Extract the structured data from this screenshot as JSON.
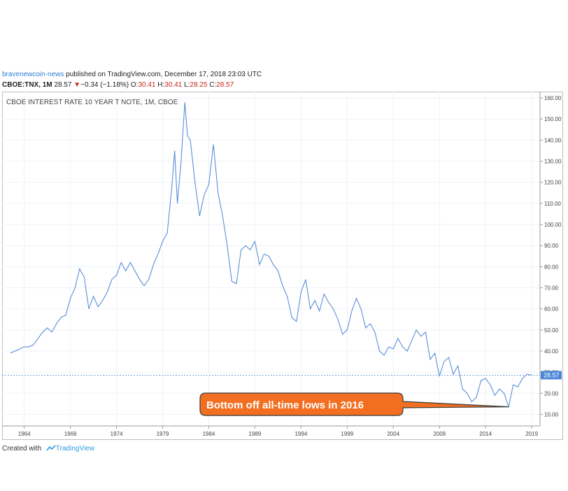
{
  "header": {
    "author": "bravenewcoin-news",
    "published_text": " published on TradingView.com, December 17, 2018 23:03 UTC",
    "symbol": "CBOE:TNX, 1M",
    "last": "28.57",
    "change": "−0.34 (−1.18%)",
    "open_label": "O:",
    "open": "30.41",
    "high_label": "H:",
    "high": "30.41",
    "low_label": "L:",
    "low": "28.25",
    "close_label": "C:",
    "close": "28.57"
  },
  "footer": {
    "created_with": "Created with",
    "brand": "TradingView"
  },
  "colors": {
    "line": "#5b8fd6",
    "price_tag": "#4a86d8",
    "annotation": "#f26f21",
    "down": "#c8281e"
  },
  "chart_data": {
    "type": "line",
    "title": "CBOE INTEREST RATE 10 YEAR T NOTE, 1M, CBOE",
    "xlabel": "",
    "ylabel": "",
    "x_ticks": [
      "1964",
      "1969",
      "1974",
      "1979",
      "1984",
      "1989",
      "1994",
      "1999",
      "2004",
      "2009",
      "2014",
      "2019"
    ],
    "y_ticks": [
      "10.00",
      "20.00",
      "30.00",
      "40.00",
      "50.00",
      "60.00",
      "70.00",
      "80.00",
      "90.00",
      "100.00",
      "110.00",
      "120.00",
      "130.00",
      "140.00",
      "150.00",
      "160.00"
    ],
    "xlim": [
      1961.6,
      2019.9
    ],
    "ylim": [
      4.5,
      163
    ],
    "y_axis_side": "right",
    "grid": true,
    "last_price_label": "28.57",
    "last_price": 28.57,
    "annotation": {
      "text": "Bottom off all-time lows in 2016",
      "target": [
        2016.5,
        13.6
      ]
    },
    "series": [
      {
        "x": [
          1962.5,
          1963.0,
          1963.5,
          1964.0,
          1964.5,
          1965.0,
          1965.5,
          1966.0,
          1966.5,
          1967.0,
          1967.5,
          1968.0,
          1968.5,
          1969.0,
          1969.5,
          1970.0,
          1970.5,
          1971.0,
          1971.5,
          1972.0,
          1972.5,
          1973.0,
          1973.5,
          1974.0,
          1974.5,
          1975.0,
          1975.5,
          1976.0,
          1976.5,
          1977.0,
          1977.5,
          1978.0,
          1978.5,
          1979.0,
          1979.5,
          1980.0,
          1980.3,
          1980.6,
          1981.0,
          1981.4,
          1981.7,
          1982.0,
          1982.5,
          1983.0,
          1983.5,
          1984.0,
          1984.5,
          1985.0,
          1985.5,
          1986.0,
          1986.5,
          1987.0,
          1987.5,
          1988.0,
          1988.5,
          1989.0,
          1989.5,
          1990.0,
          1990.5,
          1991.0,
          1991.5,
          1992.0,
          1992.5,
          1993.0,
          1993.5,
          1994.0,
          1994.5,
          1995.0,
          1995.5,
          1996.0,
          1996.5,
          1997.0,
          1997.5,
          1998.0,
          1998.5,
          1999.0,
          1999.5,
          2000.0,
          2000.5,
          2001.0,
          2001.5,
          2002.0,
          2002.5,
          2003.0,
          2003.5,
          2004.0,
          2004.5,
          2005.0,
          2005.5,
          2006.0,
          2006.5,
          2007.0,
          2007.5,
          2008.0,
          2008.5,
          2009.0,
          2009.5,
          2010.0,
          2010.5,
          2011.0,
          2011.5,
          2012.0,
          2012.5,
          2013.0,
          2013.5,
          2014.0,
          2014.5,
          2015.0,
          2015.5,
          2016.0,
          2016.5,
          2017.0,
          2017.5,
          2018.0,
          2018.5,
          2018.96
        ],
        "y": [
          39.0,
          40.0,
          41.0,
          42.0,
          42.0,
          43.0,
          46.0,
          49.0,
          51.0,
          49.0,
          53.0,
          56.0,
          57.0,
          65.0,
          70.0,
          79.0,
          75.0,
          60.0,
          66.0,
          61.0,
          64.0,
          68.0,
          74.0,
          76.0,
          82.0,
          78.0,
          82.0,
          78.0,
          74.0,
          71.0,
          74.0,
          81.0,
          86.0,
          92.0,
          96.0,
          118.0,
          135.0,
          110.0,
          130.0,
          158.0,
          142.0,
          140.0,
          120.0,
          104.0,
          114.0,
          119.0,
          138.0,
          115.0,
          104.0,
          90.0,
          73.0,
          72.0,
          88.0,
          90.0,
          88.0,
          92.0,
          81.0,
          86.0,
          85.0,
          81.0,
          78.0,
          71.0,
          66.0,
          56.0,
          54.0,
          68.0,
          74.0,
          60.0,
          64.0,
          59.0,
          67.0,
          63.0,
          60.0,
          55.0,
          48.0,
          50.0,
          59.0,
          65.0,
          60.0,
          51.0,
          53.0,
          49.0,
          40.0,
          38.0,
          42.0,
          41.0,
          46.0,
          42.0,
          40.0,
          45.0,
          50.0,
          47.0,
          49.0,
          36.0,
          39.0,
          28.0,
          35.0,
          37.0,
          29.0,
          33.0,
          22.0,
          20.0,
          16.0,
          18.0,
          26.0,
          27.0,
          24.0,
          19.0,
          22.0,
          20.0,
          13.6,
          24.0,
          23.0,
          27.0,
          29.0,
          28.57
        ]
      }
    ]
  }
}
